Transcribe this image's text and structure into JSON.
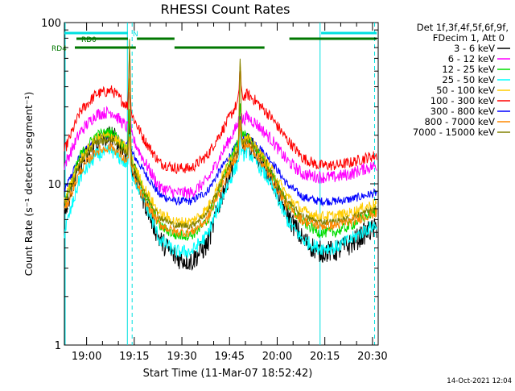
{
  "chart_data": {
    "type": "line",
    "title": "RHESSI Count Rates",
    "xlabel": "Start Time (11-Mar-07 18:52:42)",
    "ylabel": "Count Rate (s⁻¹ detector segment⁻¹)",
    "yscale": "log",
    "ylim": [
      1,
      100
    ],
    "xlim": [
      "18:52:42",
      "20:31:30"
    ],
    "ytick_labels": [
      "1",
      "10",
      "100"
    ],
    "xtick_labels": [
      "19:00",
      "19:15",
      "19:30",
      "19:45",
      "20:00",
      "20:15",
      "20:30"
    ],
    "xtick_minutes": [
      420,
      1320,
      2220,
      3120,
      4020,
      4920,
      5820
    ],
    "legend_header": [
      "Det 1f,3f,4f,5f,6f,9f,",
      "FDecim 1, Att 0"
    ],
    "legend_position": "right-outside",
    "timestamp": "14-Oct-2021 12:04",
    "series": [
      {
        "name": "3 - 6 keV",
        "color": "#000000",
        "x": [
          0,
          300,
          600,
          900,
          1200,
          1500,
          1800,
          2100,
          2400,
          2700,
          3000,
          3300,
          3450,
          3600,
          3900,
          4200,
          4500,
          4800,
          5100,
          5400,
          5700,
          5900
        ],
        "values": [
          7.0,
          13.0,
          18.0,
          20.0,
          15.0,
          8.0,
          4.5,
          3.5,
          3.3,
          4.2,
          9.0,
          17.0,
          18.0,
          16.0,
          11.0,
          6.5,
          4.5,
          3.8,
          3.8,
          4.2,
          5.0,
          5.3
        ]
      },
      {
        "name": "6 - 12 keV",
        "color": "#ff00ff",
        "x": [
          0,
          300,
          600,
          900,
          1200,
          1500,
          1800,
          2100,
          2400,
          2700,
          3000,
          3300,
          3450,
          3600,
          3900,
          4200,
          4500,
          4800,
          5100,
          5400,
          5700,
          5900
        ],
        "values": [
          13.0,
          21.0,
          27.0,
          28.0,
          22.0,
          14.0,
          9.5,
          8.8,
          8.8,
          10.5,
          16.0,
          24.0,
          26.0,
          24.0,
          19.0,
          14.0,
          11.5,
          11.0,
          11.0,
          11.5,
          12.5,
          13.0
        ]
      },
      {
        "name": "12 - 25 keV",
        "color": "#00dd00",
        "x": [
          0,
          300,
          600,
          900,
          1200,
          1500,
          1800,
          2100,
          2400,
          2700,
          3000,
          3300,
          3450,
          3600,
          3900,
          4200,
          4500,
          4800,
          5100,
          5400,
          5700,
          5900
        ],
        "values": [
          7.5,
          15.0,
          20.0,
          21.0,
          16.0,
          9.0,
          5.5,
          4.8,
          4.8,
          5.8,
          11.0,
          19.0,
          20.0,
          17.0,
          12.0,
          7.5,
          5.8,
          5.0,
          5.0,
          5.5,
          6.3,
          6.8
        ]
      },
      {
        "name": "25 - 50 keV",
        "color": "#00ffff",
        "x": [
          0,
          300,
          600,
          900,
          1200,
          1500,
          1800,
          2100,
          2400,
          2700,
          3000,
          3300,
          3450,
          3600,
          3900,
          4200,
          4500,
          4800,
          5100,
          5400,
          5700,
          5900
        ],
        "values": [
          5.0,
          11.0,
          15.0,
          16.0,
          13.0,
          8.0,
          4.5,
          3.8,
          3.8,
          4.8,
          8.5,
          14.0,
          16.0,
          14.0,
          10.0,
          6.0,
          4.5,
          4.0,
          4.0,
          4.5,
          5.2,
          5.6
        ]
      },
      {
        "name": "50 - 100 keV",
        "color": "#ffcc00",
        "x": [
          0,
          300,
          600,
          900,
          1200,
          1500,
          1800,
          2100,
          2400,
          2700,
          3000,
          3300,
          3450,
          3600,
          3900,
          4200,
          4500,
          4800,
          5100,
          5400,
          5700,
          5900
        ],
        "values": [
          8.0,
          14.0,
          19.0,
          20.0,
          16.0,
          9.5,
          6.5,
          5.8,
          5.8,
          7.0,
          11.5,
          18.0,
          19.0,
          17.0,
          12.5,
          8.5,
          6.8,
          6.3,
          6.3,
          6.6,
          7.2,
          7.6
        ]
      },
      {
        "name": "100 - 300 keV",
        "color": "#ff0000",
        "x": [
          0,
          300,
          600,
          900,
          1200,
          1500,
          1800,
          2100,
          2400,
          2700,
          3000,
          3300,
          3450,
          3600,
          3900,
          4200,
          4500,
          4800,
          5100,
          5400,
          5700,
          5900
        ],
        "values": [
          16.0,
          28.0,
          36.0,
          38.0,
          30.0,
          19.0,
          13.5,
          12.5,
          12.5,
          15.0,
          22.0,
          33.0,
          36.0,
          33.0,
          26.0,
          19.0,
          14.5,
          13.0,
          13.0,
          13.5,
          14.5,
          15.0
        ]
      },
      {
        "name": "300 - 800 keV",
        "color": "#0000ff",
        "x": [
          0,
          300,
          600,
          900,
          1200,
          1500,
          1800,
          2100,
          2400,
          2700,
          3000,
          3300,
          3450,
          3600,
          3900,
          4200,
          4500,
          4800,
          5100,
          5400,
          5700,
          5900
        ],
        "values": [
          9.0,
          15.0,
          19.0,
          20.0,
          17.0,
          12.0,
          8.5,
          7.8,
          7.8,
          9.0,
          13.0,
          18.0,
          19.5,
          18.0,
          14.0,
          10.0,
          8.3,
          7.8,
          7.8,
          8.0,
          8.5,
          8.8
        ]
      },
      {
        "name": "800 - 7000 keV",
        "color": "#ff8800",
        "x": [
          0,
          300,
          600,
          900,
          1200,
          1500,
          1800,
          2100,
          2400,
          2700,
          3000,
          3300,
          3450,
          3600,
          3900,
          4200,
          4500,
          4800,
          5100,
          5400,
          5700,
          5900
        ],
        "values": [
          6.8,
          12.0,
          16.0,
          17.0,
          13.5,
          8.0,
          5.6,
          5.0,
          5.0,
          6.0,
          10.0,
          16.0,
          17.5,
          15.5,
          11.0,
          7.3,
          5.9,
          5.5,
          5.5,
          5.8,
          6.3,
          6.6
        ]
      },
      {
        "name": "7000 - 15000 keV",
        "color": "#808000",
        "x": [
          0,
          300,
          600,
          900,
          1200,
          1500,
          1800,
          2100,
          2400,
          2700,
          3000,
          3300,
          3450,
          3600,
          3900,
          4200,
          4500,
          4800,
          5100,
          5400,
          5700,
          5900
        ],
        "values": [
          7.5,
          13.5,
          18.0,
          19.0,
          15.0,
          9.0,
          6.2,
          5.5,
          5.5,
          6.6,
          10.8,
          17.0,
          18.5,
          16.5,
          11.8,
          7.8,
          6.3,
          5.8,
          5.8,
          6.1,
          6.7,
          7.0
        ]
      }
    ],
    "spikes": [
      {
        "x": 1230,
        "values": {
          "3 - 6 keV": 22,
          "6 - 12 keV": 38,
          "12 - 25 keV": 28,
          "25 - 50 keV": 20,
          "50 - 100 keV": 45,
          "100 - 300 keV": 70,
          "300 - 800 keV": 22,
          "800 - 7000 keV": 20,
          "7000 - 15000 keV": 80
        }
      },
      {
        "x": 3320,
        "values": {
          "3 - 6 keV": 19,
          "6 - 12 keV": 33,
          "12 - 25 keV": 32,
          "25 - 50 keV": 20,
          "50 - 100 keV": 60,
          "100 - 300 keV": 55,
          "300 - 800 keV": 25,
          "800 - 7000 keV": 24,
          "7000 - 15000 keV": 60
        }
      }
    ],
    "attenuator_bars": {
      "cyan": [
        {
          "label": "N",
          "x": [
            0,
            1200
          ]
        },
        {
          "label": "",
          "x": [
            4850,
            5900
          ]
        }
      ],
      "green_upper": [
        {
          "label": "RD0",
          "x": [
            0,
            1200
          ]
        },
        {
          "label": "",
          "x": [
            1370,
            2080
          ]
        },
        {
          "label": "",
          "x": [
            4250,
            5900
          ]
        }
      ],
      "green_lower": [
        {
          "label": "RD4",
          "x": [
            0,
            1350
          ]
        },
        {
          "label": "",
          "x": [
            2080,
            3780
          ]
        }
      ]
    },
    "vlines_solid": [
      1190,
      4830
    ],
    "vlines_dashed": [
      1280,
      5860
    ]
  },
  "colors": {
    "axis": "#000000",
    "cyan_line": "#00e0e0",
    "green_bar": "#007700"
  }
}
